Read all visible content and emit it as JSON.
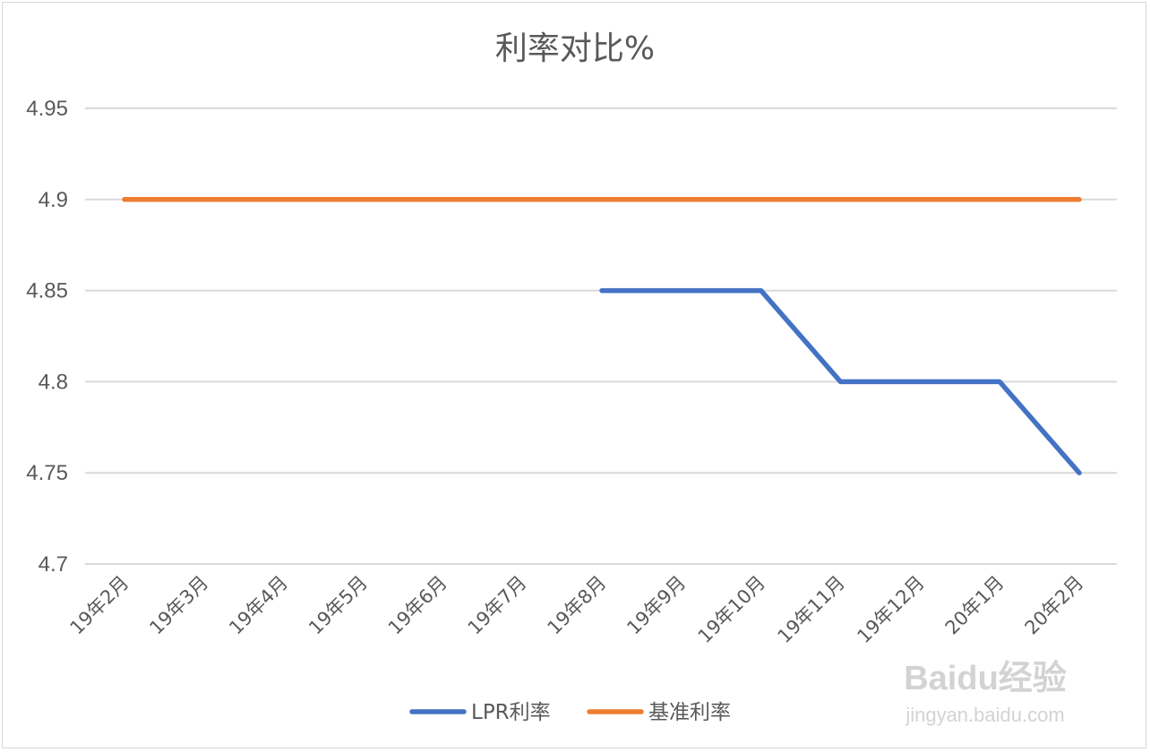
{
  "chart_data": {
    "type": "line",
    "title": "利率对比%",
    "categories": [
      "19年2月",
      "19年3月",
      "19年4月",
      "19年5月",
      "19年6月",
      "19年7月",
      "19年8月",
      "19年9月",
      "19年10月",
      "19年11月",
      "19年12月",
      "20年1月",
      "20年2月"
    ],
    "y_ticks": [
      "4.7",
      "4.75",
      "4.8",
      "4.85",
      "4.9",
      "4.95"
    ],
    "ylim": [
      4.7,
      4.95
    ],
    "grid": true,
    "legend_position": "bottom",
    "series": [
      {
        "name": "LPR利率",
        "color": "#4472c4",
        "values": [
          null,
          null,
          null,
          null,
          null,
          null,
          4.85,
          4.85,
          4.85,
          4.8,
          4.8,
          4.8,
          4.75
        ]
      },
      {
        "name": "基准利率",
        "color": "#ed7d31",
        "values": [
          4.9,
          4.9,
          4.9,
          4.9,
          4.9,
          4.9,
          4.9,
          4.9,
          4.9,
          4.9,
          4.9,
          4.9,
          4.9
        ]
      }
    ]
  },
  "watermark": {
    "brand": "Baidu经验",
    "url": "jingyan.baidu.com"
  }
}
